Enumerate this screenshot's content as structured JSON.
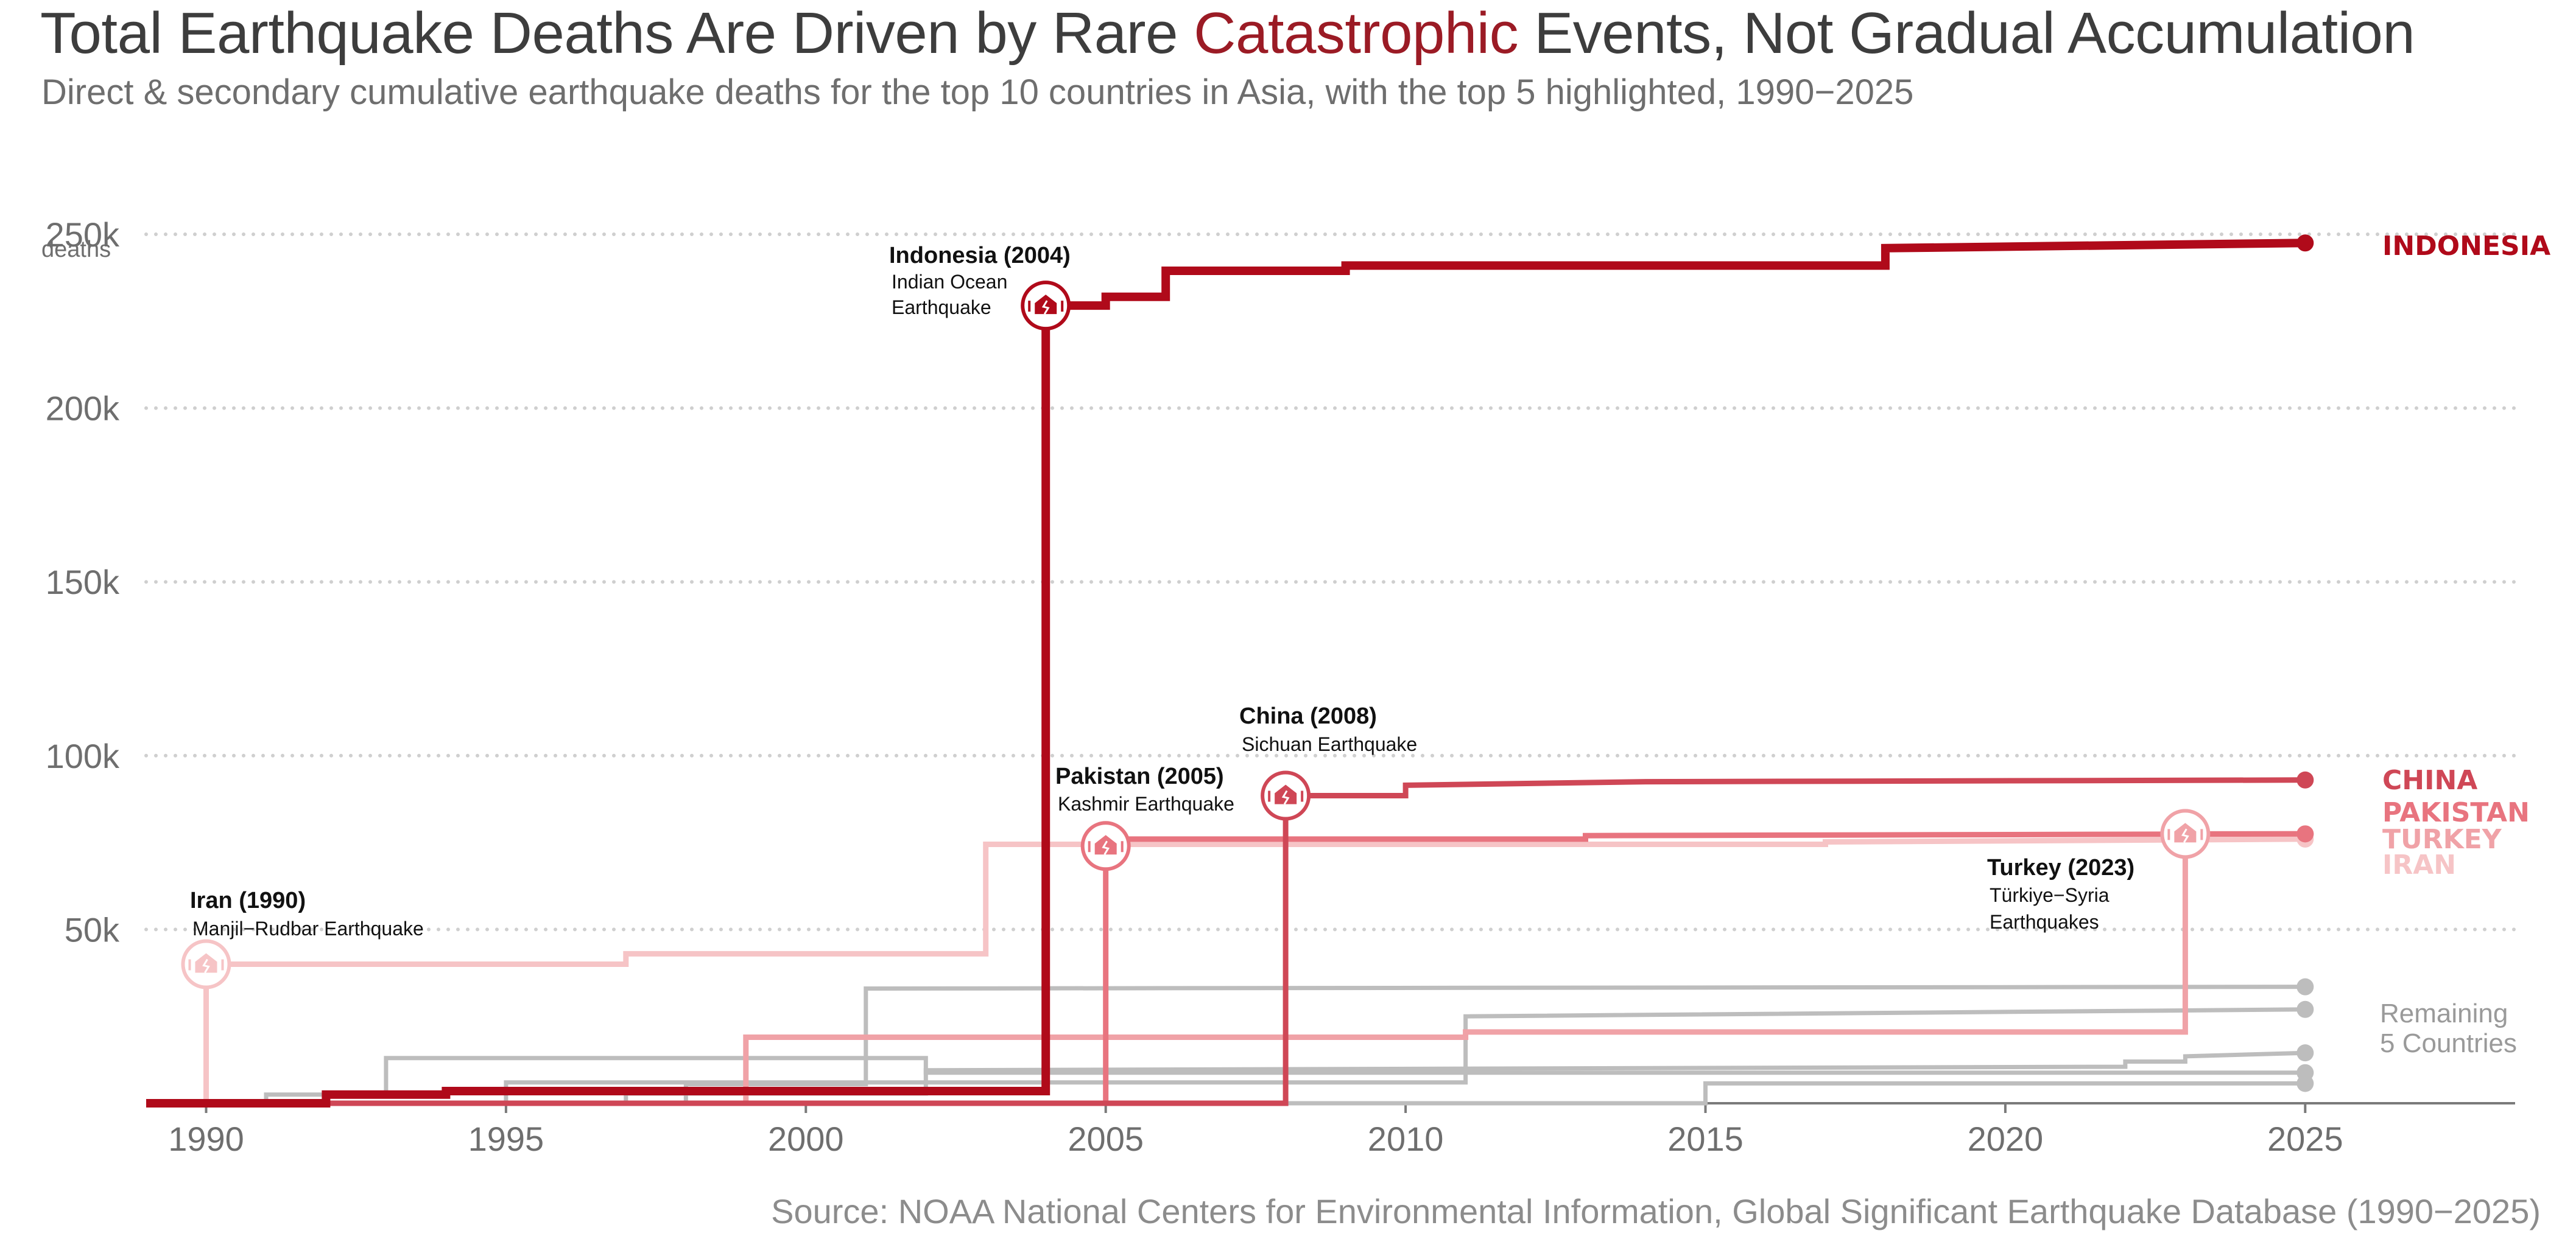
{
  "header": {
    "title_pre": "Total Earthquake Deaths Are Driven by Rare ",
    "title_accent": "Catastrophic",
    "title_post": " Events, Not Gradual Accumulation",
    "subtitle": "Direct & secondary cumulative earthquake deaths for the top 10 countries in Asia, with the top 5 highlighted, 1990−2025",
    "source": "Source: NOAA National Centers for Environmental Information, Global Significant Earthquake Database (1990−2025)"
  },
  "chart_data": {
    "type": "line",
    "step": "post",
    "xlim": [
      1989,
      2028.5
    ],
    "ylim": [
      0,
      250000
    ],
    "x_ticks": [
      1990,
      1995,
      2000,
      2005,
      2010,
      2015,
      2020,
      2025
    ],
    "y_ticks": [
      {
        "value": 50000,
        "label": "50k"
      },
      {
        "value": 100000,
        "label": "100k"
      },
      {
        "value": 150000,
        "label": "150k"
      },
      {
        "value": 200000,
        "label": "200k"
      },
      {
        "value": 250000,
        "label": "250k"
      }
    ],
    "y_unit_label": "deaths",
    "grid": "horizontal dotted",
    "colors": {
      "indonesia": "#b00a1a",
      "china": "#cf4756",
      "pakistan": "#e8747f",
      "turkey": "#f0a2a7",
      "iran": "#f6c4c6",
      "other": "#bdbdbd",
      "axis": "#7a7a7a",
      "grid": "#cfcfcf"
    },
    "series": [
      {
        "key": "other5",
        "group": "other",
        "points": [
          [
            1989,
            0
          ],
          [
            2015,
            0
          ],
          [
            2015,
            5700
          ],
          [
            2025,
            5700
          ]
        ]
      },
      {
        "key": "other4",
        "group": "other",
        "points": [
          [
            1989,
            0
          ],
          [
            1995,
            0
          ],
          [
            1995,
            6000
          ],
          [
            2011,
            6000
          ],
          [
            2011,
            25000
          ],
          [
            2025,
            27000
          ]
        ]
      },
      {
        "key": "other3",
        "group": "other",
        "points": [
          [
            1989,
            0
          ],
          [
            1997,
            0
          ],
          [
            1997,
            2800
          ],
          [
            2002,
            2800
          ],
          [
            2002,
            9500
          ],
          [
            2022,
            10500
          ],
          [
            2022,
            12000
          ],
          [
            2023,
            12000
          ],
          [
            2023,
            13500
          ],
          [
            2025,
            14500
          ]
        ]
      },
      {
        "key": "other2",
        "group": "other",
        "points": [
          [
            1989,
            0
          ],
          [
            1991,
            0
          ],
          [
            1991,
            2500
          ],
          [
            1993,
            2500
          ],
          [
            1993,
            13000
          ],
          [
            2002,
            13000
          ],
          [
            2002,
            8800
          ],
          [
            2025,
            8800
          ]
        ]
      },
      {
        "key": "other1",
        "group": "other",
        "points": [
          [
            1989,
            0
          ],
          [
            1998,
            0
          ],
          [
            1998,
            5500
          ],
          [
            2001,
            5500
          ],
          [
            2001,
            33000
          ],
          [
            2025,
            33500
          ]
        ]
      },
      {
        "key": "iran",
        "name": "IRAN",
        "group": "iran",
        "points": [
          [
            1989,
            0
          ],
          [
            1990,
            0
          ],
          [
            1990,
            40000
          ],
          [
            1997,
            40000
          ],
          [
            1997,
            43000
          ],
          [
            2003,
            43000
          ],
          [
            2003,
            74500
          ],
          [
            2017,
            74500
          ],
          [
            2017,
            75200
          ],
          [
            2025,
            76000
          ]
        ]
      },
      {
        "key": "turkey",
        "name": "TURKEY",
        "group": "turkey",
        "points": [
          [
            1989,
            0
          ],
          [
            1999,
            0
          ],
          [
            1999,
            19000
          ],
          [
            2011,
            19000
          ],
          [
            2011,
            20500
          ],
          [
            2023,
            20500
          ],
          [
            2023,
            77500
          ],
          [
            2025,
            77500
          ]
        ]
      },
      {
        "key": "pakistan",
        "name": "PAKISTAN",
        "group": "pakistan",
        "points": [
          [
            1989,
            0
          ],
          [
            2005,
            0
          ],
          [
            2005,
            76000
          ],
          [
            2013,
            76000
          ],
          [
            2013,
            77000
          ],
          [
            2025,
            77500
          ]
        ]
      },
      {
        "key": "china",
        "name": "CHINA",
        "group": "china",
        "points": [
          [
            1989,
            0
          ],
          [
            2008,
            0
          ],
          [
            2008,
            88500
          ],
          [
            2010,
            88500
          ],
          [
            2010,
            91500
          ],
          [
            2014,
            92500
          ],
          [
            2025,
            93000
          ]
        ]
      },
      {
        "key": "indonesia",
        "name": "INDONESIA",
        "group": "indonesia",
        "points": [
          [
            1989,
            0
          ],
          [
            1992,
            0
          ],
          [
            1992,
            2500
          ],
          [
            1994,
            2500
          ],
          [
            1994,
            3500
          ],
          [
            2004,
            3500
          ],
          [
            2004,
            229500
          ],
          [
            2005,
            229500
          ],
          [
            2005,
            232000
          ],
          [
            2006,
            232000
          ],
          [
            2006,
            239500
          ],
          [
            2009,
            239500
          ],
          [
            2009,
            241000
          ],
          [
            2018,
            241000
          ],
          [
            2018,
            246000
          ],
          [
            2025,
            247500
          ]
        ]
      }
    ],
    "end_labels": [
      {
        "text": "INDONESIA",
        "group": "indonesia"
      },
      {
        "text": "CHINA",
        "group": "china"
      },
      {
        "text": "PAKISTAN",
        "group": "pakistan"
      },
      {
        "text": "TURKEY",
        "group": "turkey"
      },
      {
        "text": "IRAN",
        "group": "iran"
      }
    ],
    "remaining_label": [
      "Remaining",
      "5 Countries"
    ],
    "annotations": [
      {
        "key": "iran",
        "x": 1990,
        "y": 40000,
        "group": "iran",
        "title": "Iran (1990)",
        "lines": [
          "Manjil−Rudbar Earthquake"
        ]
      },
      {
        "key": "indonesia",
        "x": 2004,
        "y": 229500,
        "group": "indonesia",
        "title": "Indonesia (2004)",
        "lines": [
          "Indian Ocean",
          "Earthquake"
        ]
      },
      {
        "key": "pakistan",
        "x": 2005,
        "y": 74000,
        "group": "pakistan",
        "title": "Pakistan (2005)",
        "lines": [
          "Kashmir Earthquake"
        ]
      },
      {
        "key": "china",
        "x": 2008,
        "y": 88500,
        "group": "china",
        "title": "China (2008)",
        "lines": [
          "Sichuan Earthquake"
        ]
      },
      {
        "key": "turkey",
        "x": 2023,
        "y": 77500,
        "group": "turkey",
        "title": "Turkey (2023)",
        "lines": [
          "Türkiye−Syria",
          "Earthquakes"
        ]
      }
    ]
  }
}
